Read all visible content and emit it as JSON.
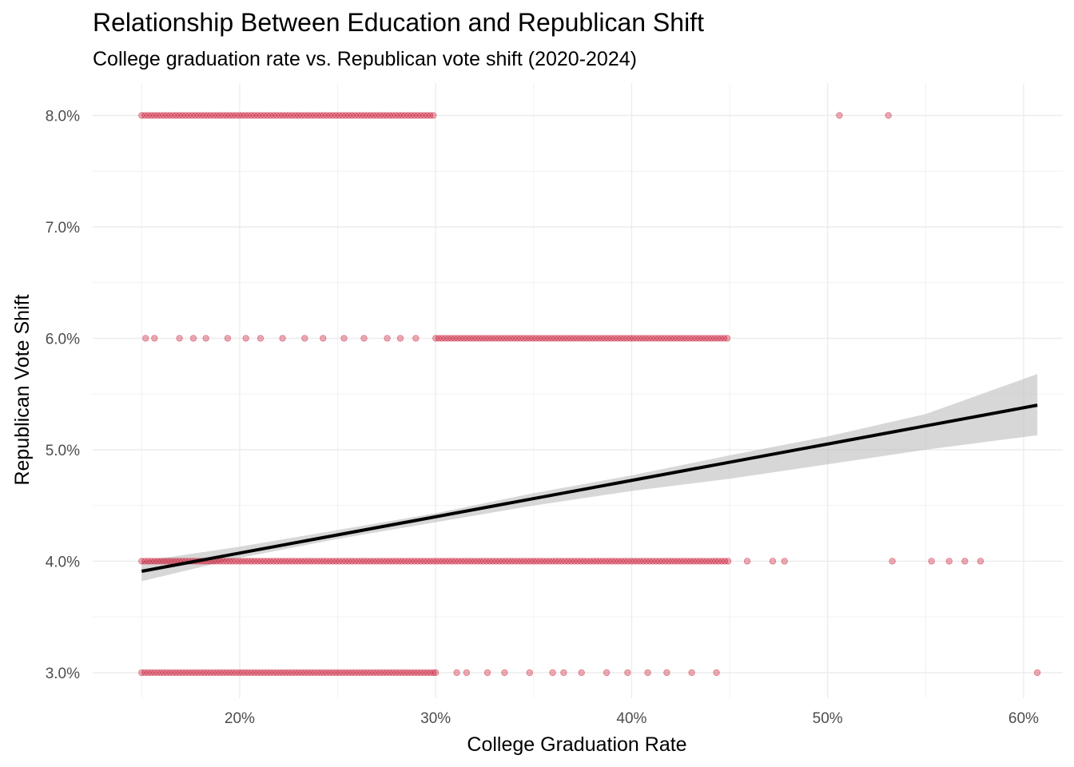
{
  "chart_data": {
    "type": "scatter",
    "title": "Relationship Between Education and Republican Shift",
    "subtitle": "College graduation rate vs. Republican vote shift (2020-2024)",
    "xlabel": "College Graduation Rate",
    "ylabel": "Republican Vote Shift",
    "xlim": [
      0.125,
      0.62
    ],
    "ylim": [
      0.0277,
      0.0829
    ],
    "x_ticks": [
      0.2,
      0.3,
      0.4,
      0.5,
      0.6
    ],
    "x_tick_labels": [
      "20%",
      "30%",
      "40%",
      "50%",
      "60%"
    ],
    "y_ticks": [
      0.03,
      0.04,
      0.05,
      0.06,
      0.07,
      0.08
    ],
    "y_tick_labels": [
      "3.0%",
      "4.0%",
      "5.0%",
      "6.0%",
      "7.0%",
      "8.0%"
    ],
    "grid": true,
    "point_color": "#c8102e",
    "trend_color": "#000000",
    "band_color": "#bdbdbd",
    "point_groups": [
      {
        "y": 0.08,
        "dense_range": [
          0.15,
          0.3
        ],
        "extra_x": [
          0.506,
          0.531
        ]
      },
      {
        "y": 0.06,
        "sparse_range": [
          0.152,
          0.3
        ],
        "dense_range": [
          0.3,
          0.45
        ],
        "extra_x": []
      },
      {
        "y": 0.04,
        "dense_range": [
          0.15,
          0.45
        ],
        "extra_x": [
          0.459,
          0.472,
          0.478,
          0.533,
          0.553,
          0.562,
          0.57,
          0.578
        ]
      },
      {
        "y": 0.03,
        "dense_range": [
          0.15,
          0.3
        ],
        "sparse_range": [
          0.3,
          0.45
        ],
        "extra_x": [
          0.607
        ]
      }
    ],
    "trend_line": {
      "x": [
        0.15,
        0.607
      ],
      "y": [
        0.0391,
        0.054
      ]
    },
    "confidence_band": {
      "x": [
        0.15,
        0.2,
        0.25,
        0.3,
        0.35,
        0.4,
        0.45,
        0.5,
        0.55,
        0.607
      ],
      "lower": [
        0.0382,
        0.0403,
        0.042,
        0.0435,
        0.045,
        0.0463,
        0.0474,
        0.0487,
        0.05,
        0.0513
      ],
      "upper": [
        0.04,
        0.0413,
        0.0428,
        0.0443,
        0.0461,
        0.0477,
        0.0495,
        0.0512,
        0.0532,
        0.0568
      ]
    }
  }
}
